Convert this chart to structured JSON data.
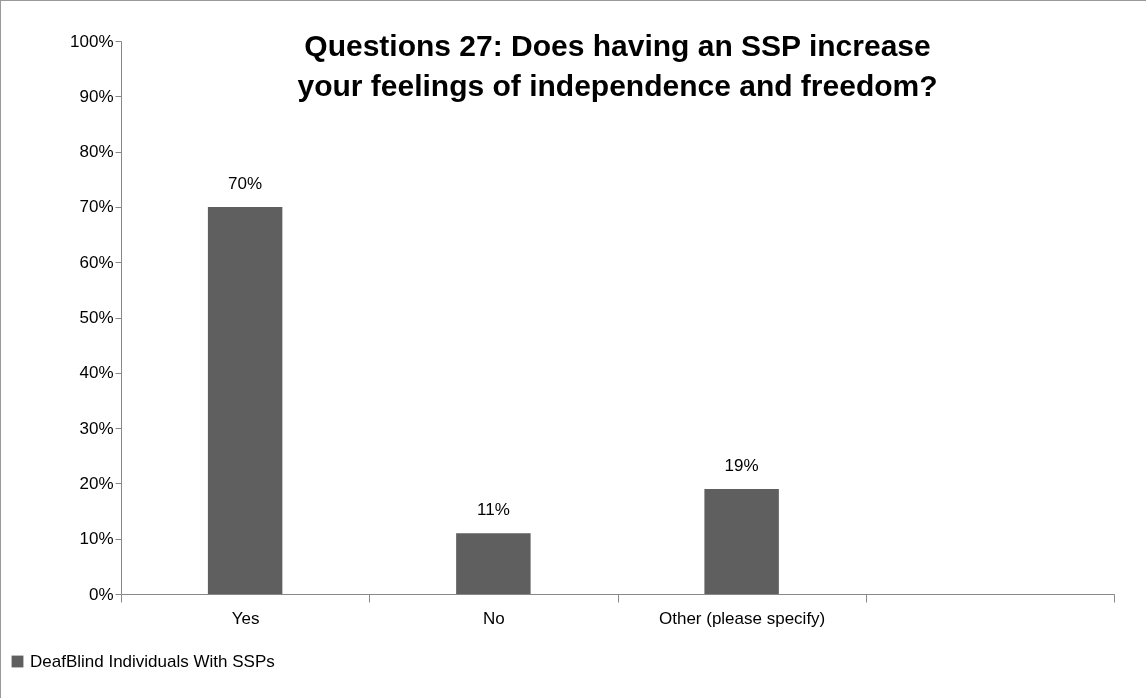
{
  "chart_data": {
    "type": "bar",
    "title": "Questions 27: Does having an SSP increase your feelings of independence and freedom?",
    "categories": [
      "Yes",
      "No",
      "Other (please specify)",
      null
    ],
    "series": [
      {
        "name": "DeafBlind Individuals With SSPs",
        "color": "#5f5f5f",
        "values": [
          70,
          11,
          19,
          null
        ],
        "value_labels": [
          "70%",
          "11%",
          "19%",
          null
        ]
      }
    ],
    "ylim": [
      0,
      100
    ],
    "yticks": [
      {
        "value": 0,
        "label": "0%"
      },
      {
        "value": 10,
        "label": "10%"
      },
      {
        "value": 20,
        "label": "20%"
      },
      {
        "value": 30,
        "label": "30%"
      },
      {
        "value": 40,
        "label": "40%"
      },
      {
        "value": 50,
        "label": "50%"
      },
      {
        "value": 60,
        "label": "60%"
      },
      {
        "value": 70,
        "label": "70%"
      },
      {
        "value": 80,
        "label": "80%"
      },
      {
        "value": 90,
        "label": "90%"
      },
      {
        "value": 100,
        "label": "100%"
      }
    ],
    "grid": false,
    "legend": "bottom left"
  }
}
